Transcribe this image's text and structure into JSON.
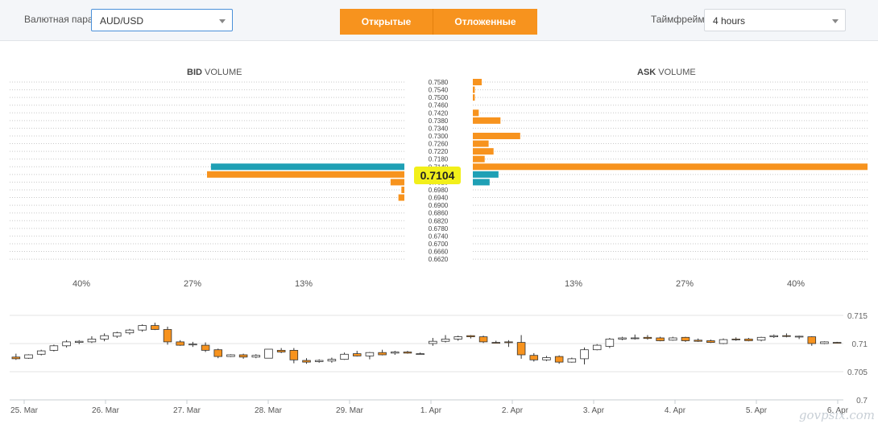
{
  "toolbar": {
    "pair_label": "Валютная пара",
    "pair_value": "AUD/USD",
    "tab_open": "Открытые",
    "tab_pending": "Отложенные",
    "timeframe_label": "Таймфрейм",
    "timeframe_value": "4 hours"
  },
  "colors": {
    "orange": "#f7931e",
    "teal": "#1fa0b5",
    "price_badge": "#f2ef1a",
    "candle_up_fill": "#ffffff",
    "candle_down_fill": "#f7931e"
  },
  "bid_title": {
    "bold": "BID",
    "rest": " VOLUME"
  },
  "ask_title": {
    "bold": "ASK",
    "rest": " VOLUME"
  },
  "chart_data": [
    {
      "type": "bar",
      "subtype": "order-book-volume",
      "current_price": "0.7104",
      "price_levels": [
        "0.7580",
        "0.7540",
        "0.7500",
        "0.7460",
        "0.7420",
        "0.7380",
        "0.7340",
        "0.7300",
        "0.7260",
        "0.7220",
        "0.7180",
        "0.7140",
        "0.7060",
        "0.7020",
        "0.6980",
        "0.6940",
        "0.6900",
        "0.6860",
        "0.6820",
        "0.6780",
        "0.6740",
        "0.6700",
        "0.6660",
        "0.6620"
      ],
      "bid_axis_ticks": [
        "40%",
        "27%",
        "13%"
      ],
      "ask_axis_ticks": [
        "13%",
        "27%",
        "40%"
      ],
      "bid_max_percent": 40,
      "ask_max_percent": 40,
      "series": [
        {
          "side": "bid",
          "color": "teal",
          "values": [
            {
              "level": "0.7140",
              "percent": 19.6
            }
          ]
        },
        {
          "side": "bid",
          "color": "orange",
          "values": [
            {
              "level": "0.7060",
              "percent": 20.0
            },
            {
              "level": "0.7020",
              "percent": 1.4
            },
            {
              "level": "0.6980",
              "percent": 0.3
            },
            {
              "level": "0.6940",
              "percent": 0.6
            }
          ]
        },
        {
          "side": "ask",
          "color": "orange",
          "values": [
            {
              "level": "0.7580",
              "percent": 0.9
            },
            {
              "level": "0.7540",
              "percent": 0.2
            },
            {
              "level": "0.7500",
              "percent": 0.2
            },
            {
              "level": "0.7420",
              "percent": 0.6
            },
            {
              "level": "0.7380",
              "percent": 2.8
            },
            {
              "level": "0.7300",
              "percent": 4.8
            },
            {
              "level": "0.7260",
              "percent": 1.6
            },
            {
              "level": "0.7220",
              "percent": 2.1
            },
            {
              "level": "0.7180",
              "percent": 1.2
            },
            {
              "level": "0.7140",
              "percent": 40.0
            }
          ]
        },
        {
          "side": "ask",
          "color": "teal",
          "values": [
            {
              "level": "0.7060",
              "percent": 2.6
            },
            {
              "level": "0.7020",
              "percent": 1.7
            }
          ]
        }
      ],
      "grid": true
    },
    {
      "type": "candlestick",
      "x_labels": [
        "25. Mar",
        "26. Mar",
        "27. Mar",
        "28. Mar",
        "29. Mar",
        "1. Apr",
        "2. Apr",
        "3. Apr",
        "4. Apr",
        "5. Apr",
        "6. Apr"
      ],
      "y_ticks": [
        "0.715",
        "0.71",
        "0.705",
        "0.7"
      ],
      "ylim": [
        0.7,
        0.717
      ],
      "grid": true,
      "candles": [
        {
          "o": 0.7076,
          "h": 0.7082,
          "l": 0.7071,
          "c": 0.7073
        },
        {
          "o": 0.7074,
          "h": 0.7081,
          "l": 0.7073,
          "c": 0.708
        },
        {
          "o": 0.7081,
          "h": 0.7089,
          "l": 0.7079,
          "c": 0.7087
        },
        {
          "o": 0.7088,
          "h": 0.7098,
          "l": 0.7086,
          "c": 0.7096
        },
        {
          "o": 0.7096,
          "h": 0.7106,
          "l": 0.7093,
          "c": 0.7103
        },
        {
          "o": 0.7102,
          "h": 0.7106,
          "l": 0.7099,
          "c": 0.7104
        },
        {
          "o": 0.7103,
          "h": 0.7113,
          "l": 0.7101,
          "c": 0.7108
        },
        {
          "o": 0.7108,
          "h": 0.7118,
          "l": 0.7104,
          "c": 0.7114
        },
        {
          "o": 0.7113,
          "h": 0.7121,
          "l": 0.711,
          "c": 0.7119
        },
        {
          "o": 0.7119,
          "h": 0.7126,
          "l": 0.7116,
          "c": 0.7124
        },
        {
          "o": 0.7124,
          "h": 0.7134,
          "l": 0.7121,
          "c": 0.7132
        },
        {
          "o": 0.7132,
          "h": 0.7137,
          "l": 0.7124,
          "c": 0.7125
        },
        {
          "o": 0.7125,
          "h": 0.713,
          "l": 0.7098,
          "c": 0.7103
        },
        {
          "o": 0.7103,
          "h": 0.7106,
          "l": 0.7096,
          "c": 0.7097
        },
        {
          "o": 0.7099,
          "h": 0.7103,
          "l": 0.7094,
          "c": 0.7099
        },
        {
          "o": 0.7097,
          "h": 0.7102,
          "l": 0.7085,
          "c": 0.7088
        },
        {
          "o": 0.7089,
          "h": 0.7091,
          "l": 0.7074,
          "c": 0.7077
        },
        {
          "o": 0.7077,
          "h": 0.7081,
          "l": 0.7076,
          "c": 0.708
        },
        {
          "o": 0.708,
          "h": 0.7082,
          "l": 0.7073,
          "c": 0.7076
        },
        {
          "o": 0.7076,
          "h": 0.7081,
          "l": 0.7074,
          "c": 0.7079
        },
        {
          "o": 0.7074,
          "h": 0.709,
          "l": 0.7074,
          "c": 0.709
        },
        {
          "o": 0.7088,
          "h": 0.7092,
          "l": 0.7083,
          "c": 0.7085
        },
        {
          "o": 0.7088,
          "h": 0.7092,
          "l": 0.7065,
          "c": 0.7071
        },
        {
          "o": 0.707,
          "h": 0.7074,
          "l": 0.7064,
          "c": 0.7067
        },
        {
          "o": 0.7068,
          "h": 0.7072,
          "l": 0.7066,
          "c": 0.707
        },
        {
          "o": 0.7069,
          "h": 0.7075,
          "l": 0.7066,
          "c": 0.7072
        },
        {
          "o": 0.7072,
          "h": 0.7084,
          "l": 0.7071,
          "c": 0.7081
        },
        {
          "o": 0.7082,
          "h": 0.7087,
          "l": 0.7077,
          "c": 0.7078
        },
        {
          "o": 0.7078,
          "h": 0.7085,
          "l": 0.7072,
          "c": 0.7084
        },
        {
          "o": 0.7084,
          "h": 0.7089,
          "l": 0.7079,
          "c": 0.708
        },
        {
          "o": 0.7083,
          "h": 0.7087,
          "l": 0.708,
          "c": 0.7085
        },
        {
          "o": 0.7085,
          "h": 0.7087,
          "l": 0.7082,
          "c": 0.7083
        },
        {
          "o": 0.7082,
          "h": 0.7084,
          "l": 0.708,
          "c": 0.7082
        },
        {
          "o": 0.71,
          "h": 0.711,
          "l": 0.7096,
          "c": 0.7104
        },
        {
          "o": 0.7104,
          "h": 0.7115,
          "l": 0.7102,
          "c": 0.7108
        },
        {
          "o": 0.7108,
          "h": 0.7114,
          "l": 0.7105,
          "c": 0.7112
        },
        {
          "o": 0.7114,
          "h": 0.7115,
          "l": 0.7109,
          "c": 0.7112
        },
        {
          "o": 0.7112,
          "h": 0.7114,
          "l": 0.7101,
          "c": 0.7103
        },
        {
          "o": 0.7102,
          "h": 0.7105,
          "l": 0.71,
          "c": 0.7101
        },
        {
          "o": 0.7103,
          "h": 0.7106,
          "l": 0.7094,
          "c": 0.7102
        },
        {
          "o": 0.7102,
          "h": 0.7115,
          "l": 0.7073,
          "c": 0.708
        },
        {
          "o": 0.7079,
          "h": 0.7083,
          "l": 0.7068,
          "c": 0.7071
        },
        {
          "o": 0.7071,
          "h": 0.7078,
          "l": 0.7069,
          "c": 0.7075
        },
        {
          "o": 0.7077,
          "h": 0.7079,
          "l": 0.7064,
          "c": 0.7067
        },
        {
          "o": 0.7067,
          "h": 0.7075,
          "l": 0.7066,
          "c": 0.7073
        },
        {
          "o": 0.7073,
          "h": 0.7093,
          "l": 0.7063,
          "c": 0.7089
        },
        {
          "o": 0.7089,
          "h": 0.7099,
          "l": 0.7088,
          "c": 0.7097
        },
        {
          "o": 0.7095,
          "h": 0.711,
          "l": 0.7092,
          "c": 0.7108
        },
        {
          "o": 0.7108,
          "h": 0.7112,
          "l": 0.7106,
          "c": 0.711
        },
        {
          "o": 0.711,
          "h": 0.7116,
          "l": 0.7107,
          "c": 0.711
        },
        {
          "o": 0.7111,
          "h": 0.7115,
          "l": 0.7107,
          "c": 0.7109
        },
        {
          "o": 0.711,
          "h": 0.7112,
          "l": 0.7104,
          "c": 0.7105
        },
        {
          "o": 0.7106,
          "h": 0.7112,
          "l": 0.7105,
          "c": 0.711
        },
        {
          "o": 0.7111,
          "h": 0.7112,
          "l": 0.7103,
          "c": 0.7105
        },
        {
          "o": 0.7106,
          "h": 0.7109,
          "l": 0.7103,
          "c": 0.7104
        },
        {
          "o": 0.7105,
          "h": 0.7107,
          "l": 0.7101,
          "c": 0.7102
        },
        {
          "o": 0.71,
          "h": 0.7109,
          "l": 0.7099,
          "c": 0.7107
        },
        {
          "o": 0.7108,
          "h": 0.7111,
          "l": 0.7105,
          "c": 0.7107
        },
        {
          "o": 0.7108,
          "h": 0.711,
          "l": 0.7104,
          "c": 0.7105
        },
        {
          "o": 0.7106,
          "h": 0.7112,
          "l": 0.7104,
          "c": 0.7111
        },
        {
          "o": 0.7112,
          "h": 0.7116,
          "l": 0.711,
          "c": 0.7114
        },
        {
          "o": 0.7114,
          "h": 0.7118,
          "l": 0.7111,
          "c": 0.7113
        },
        {
          "o": 0.7113,
          "h": 0.7114,
          "l": 0.7108,
          "c": 0.7113
        },
        {
          "o": 0.7112,
          "h": 0.7113,
          "l": 0.7096,
          "c": 0.71
        },
        {
          "o": 0.71,
          "h": 0.7104,
          "l": 0.7099,
          "c": 0.7103
        },
        {
          "o": 0.7102,
          "h": 0.7103,
          "l": 0.71,
          "c": 0.7101
        }
      ]
    }
  ]
}
